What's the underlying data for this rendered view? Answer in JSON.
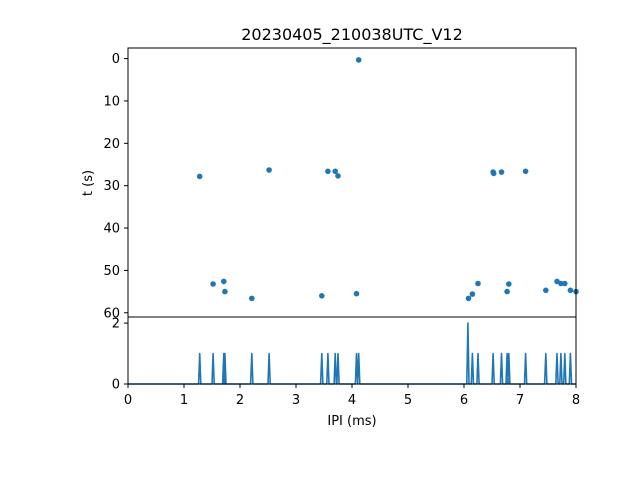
{
  "chart_data": [
    {
      "type": "scatter",
      "title": "20230405_210038UTC_V12",
      "xlabel": "",
      "ylabel": "t (s)",
      "xlim": [
        0,
        8
      ],
      "ylim": [
        61,
        -2.5
      ],
      "y_inverted": true,
      "yticks": [
        0,
        10,
        20,
        30,
        40,
        50,
        60
      ],
      "color": "#1f77b4",
      "grid": false,
      "points": [
        {
          "x": 4.12,
          "y": 0.3
        },
        {
          "x": 1.28,
          "y": 27.8
        },
        {
          "x": 2.52,
          "y": 26.3
        },
        {
          "x": 3.57,
          "y": 26.6
        },
        {
          "x": 3.7,
          "y": 26.6
        },
        {
          "x": 3.75,
          "y": 27.7
        },
        {
          "x": 6.52,
          "y": 26.8
        },
        {
          "x": 6.53,
          "y": 27.1
        },
        {
          "x": 6.67,
          "y": 26.8
        },
        {
          "x": 7.1,
          "y": 26.6
        },
        {
          "x": 1.52,
          "y": 53.2
        },
        {
          "x": 1.71,
          "y": 52.6
        },
        {
          "x": 1.73,
          "y": 55.0
        },
        {
          "x": 2.21,
          "y": 56.6
        },
        {
          "x": 3.46,
          "y": 56.0
        },
        {
          "x": 4.08,
          "y": 55.5
        },
        {
          "x": 6.08,
          "y": 56.6
        },
        {
          "x": 6.15,
          "y": 55.6
        },
        {
          "x": 6.25,
          "y": 53.1
        },
        {
          "x": 6.77,
          "y": 55.0
        },
        {
          "x": 6.8,
          "y": 53.2
        },
        {
          "x": 7.46,
          "y": 54.7
        },
        {
          "x": 7.66,
          "y": 52.6
        },
        {
          "x": 7.73,
          "y": 53.1
        },
        {
          "x": 7.8,
          "y": 53.1
        },
        {
          "x": 7.9,
          "y": 54.7
        },
        {
          "x": 8.0,
          "y": 55.0
        }
      ]
    },
    {
      "type": "line",
      "xlabel": "IPI (ms)",
      "ylabel": "",
      "xlim": [
        0,
        8
      ],
      "ylim": [
        0,
        2.2
      ],
      "xticks": [
        0,
        1,
        2,
        3,
        4,
        5,
        6,
        7,
        8
      ],
      "yticks": [
        0,
        2
      ],
      "color": "#1f77b4",
      "grid": false,
      "peak_halfwidth": 0.02,
      "peaks": [
        {
          "x": 1.28,
          "y": 1
        },
        {
          "x": 1.52,
          "y": 1
        },
        {
          "x": 1.71,
          "y": 1
        },
        {
          "x": 1.73,
          "y": 1
        },
        {
          "x": 2.21,
          "y": 1
        },
        {
          "x": 2.52,
          "y": 1
        },
        {
          "x": 3.46,
          "y": 1
        },
        {
          "x": 3.57,
          "y": 1
        },
        {
          "x": 3.7,
          "y": 1
        },
        {
          "x": 3.75,
          "y": 1
        },
        {
          "x": 4.08,
          "y": 1
        },
        {
          "x": 4.12,
          "y": 1
        },
        {
          "x": 6.07,
          "y": 2
        },
        {
          "x": 6.15,
          "y": 1
        },
        {
          "x": 6.25,
          "y": 1
        },
        {
          "x": 6.52,
          "y": 1
        },
        {
          "x": 6.67,
          "y": 1
        },
        {
          "x": 6.77,
          "y": 1
        },
        {
          "x": 6.8,
          "y": 1
        },
        {
          "x": 7.1,
          "y": 1
        },
        {
          "x": 7.46,
          "y": 1
        },
        {
          "x": 7.66,
          "y": 1
        },
        {
          "x": 7.73,
          "y": 1
        },
        {
          "x": 7.8,
          "y": 1
        },
        {
          "x": 7.9,
          "y": 1
        }
      ]
    }
  ]
}
